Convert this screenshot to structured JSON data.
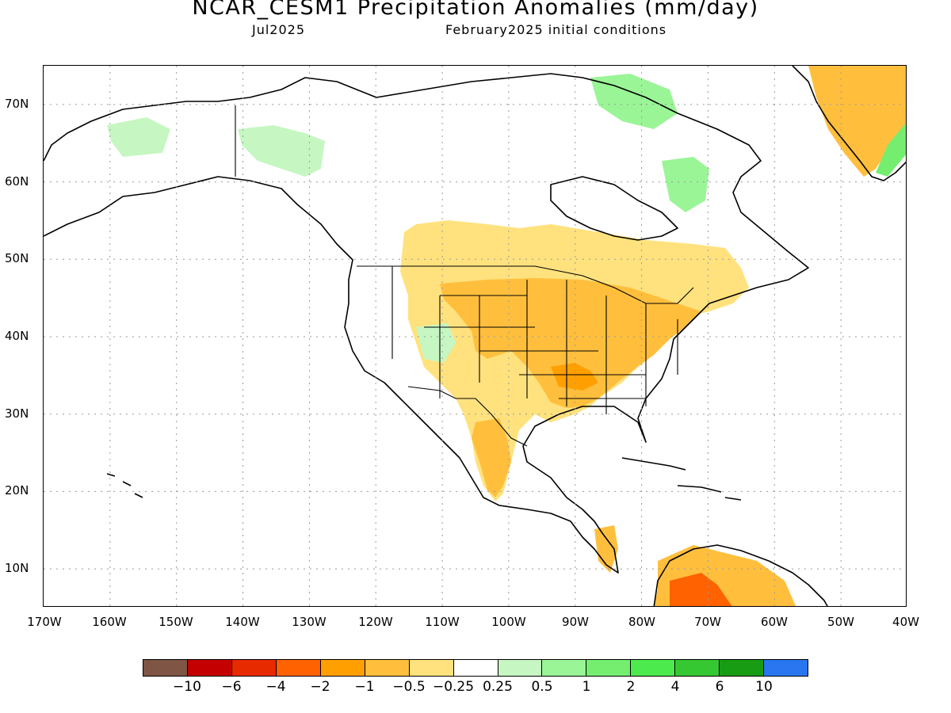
{
  "title": "NCAR_CESM1 Precipitation Anomalies (mm/day)",
  "subtitle_left": "Jul2025",
  "subtitle_right": "February2025 initial conditions",
  "lat_labels": [
    "70N",
    "60N",
    "50N",
    "40N",
    "30N",
    "20N",
    "10N"
  ],
  "lon_labels": [
    "170W",
    "160W",
    "150W",
    "140W",
    "130W",
    "120W",
    "110W",
    "100W",
    "90W",
    "80W",
    "70W",
    "60W",
    "50W",
    "40W"
  ],
  "colorbar": {
    "colors": [
      "#7f5545",
      "#c40000",
      "#e82a00",
      "#ff6200",
      "#ff9f00",
      "#ffbf3d",
      "#ffe27e",
      "#ffffff",
      "#c6f7c2",
      "#9af596",
      "#75ee70",
      "#4dea4d",
      "#36c833",
      "#179c14",
      "#2a76f0"
    ],
    "labels": [
      "−10",
      "−6",
      "−4",
      "−2",
      "−1",
      "−0.5",
      "−0.25",
      "0.25",
      "0.5",
      "1",
      "2",
      "4",
      "6",
      "10"
    ]
  },
  "map_data": {
    "projection": "equirectangular",
    "lon_range": [
      -170,
      -40
    ],
    "lat_range": [
      5,
      75
    ],
    "grid": "dotted 10 degree",
    "anomaly_regions": [
      {
        "region": "Central and Eastern US",
        "category": "-1 to -2"
      },
      {
        "region": "Northern Mexico",
        "category": "-0.5 to -1"
      },
      {
        "region": "Northern South America",
        "category": "-2 to -4"
      },
      {
        "region": "Eastern Greenland",
        "category": "-1 to -2"
      },
      {
        "region": "Alaska and Yukon",
        "category": "0.25 to 0.5"
      },
      {
        "region": "Hudson Bay area and Canadian Arctic",
        "category": "0.25 to 1"
      },
      {
        "region": "Southeast Greenland coast",
        "category": "1 to 4"
      }
    ]
  }
}
